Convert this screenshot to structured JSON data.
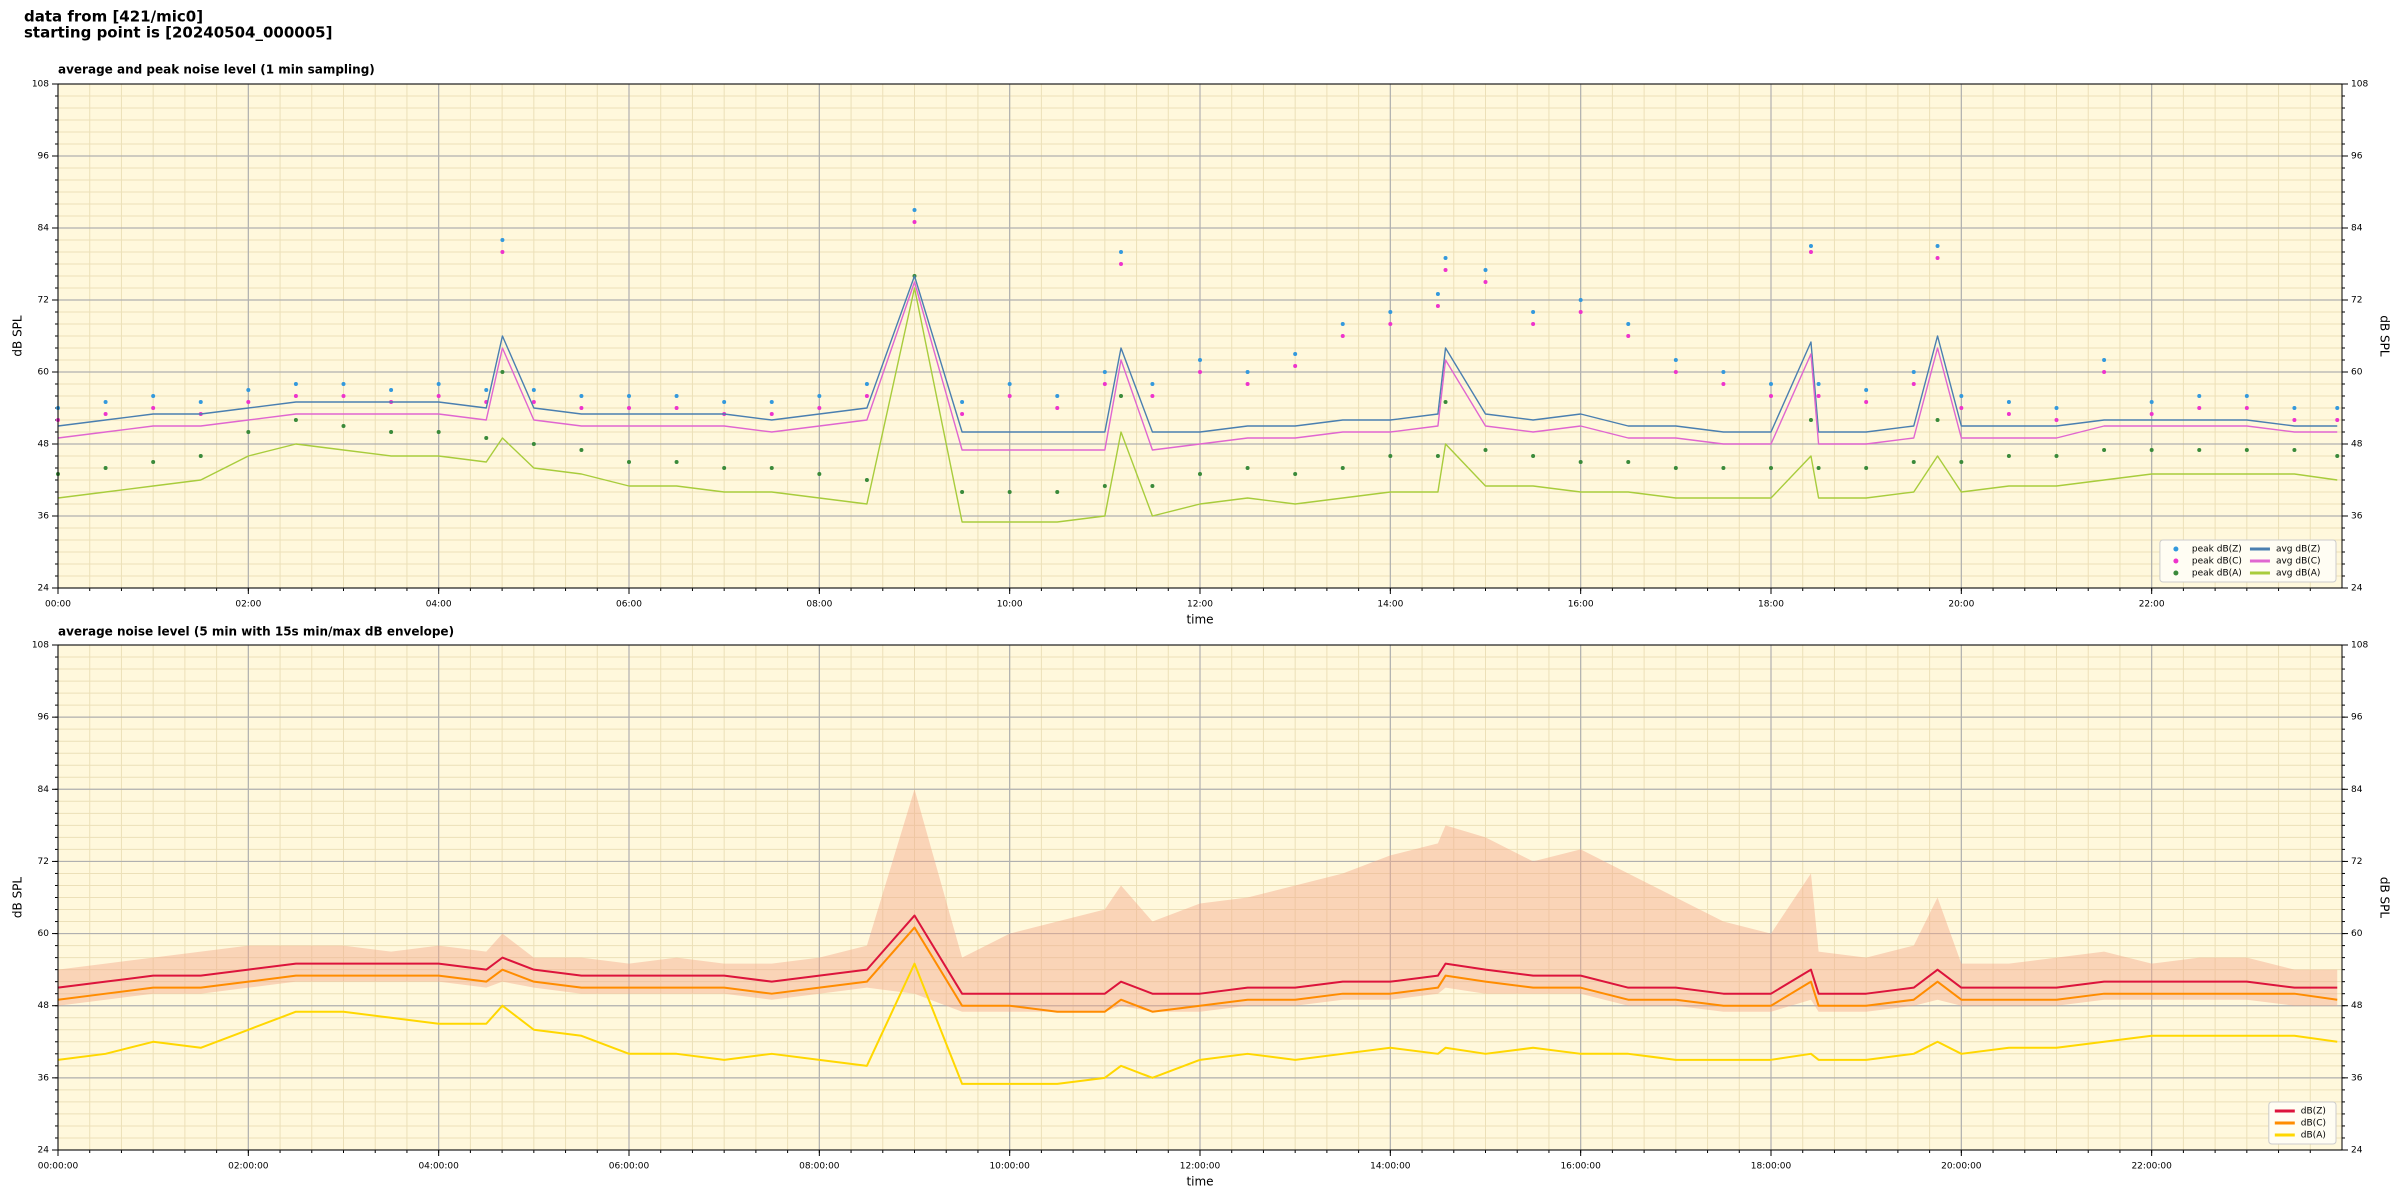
{
  "header": {
    "line1": "data from [421/mic0]",
    "line2": "starting point is [20240504_000005]"
  },
  "chart_data": [
    {
      "type": "line",
      "title": "average and peak noise level (1 min sampling)",
      "xlabel": "time",
      "ylabel": "dB SPL",
      "x": [
        0,
        0.5,
        1,
        1.5,
        2,
        2.5,
        3,
        3.5,
        4,
        4.5,
        4.67,
        5,
        5.5,
        6,
        6.5,
        7,
        7.5,
        8,
        8.5,
        9,
        9.5,
        10,
        10.5,
        11,
        11.17,
        11.5,
        12,
        12.5,
        13,
        13.5,
        14,
        14.5,
        14.58,
        15,
        15.5,
        16,
        16.5,
        17,
        17.5,
        18,
        18.42,
        18.5,
        19,
        19.5,
        19.75,
        20,
        20.5,
        21,
        21.5,
        22,
        22.5,
        23,
        23.5,
        23.95
      ],
      "xlim": [
        0,
        24
      ],
      "xticks": [
        {
          "value": 0,
          "label": "00:00"
        },
        {
          "value": 2,
          "label": "02:00"
        },
        {
          "value": 4,
          "label": "04:00"
        },
        {
          "value": 6,
          "label": "06:00"
        },
        {
          "value": 8,
          "label": "08:00"
        },
        {
          "value": 10,
          "label": "10:00"
        },
        {
          "value": 12,
          "label": "12:00"
        },
        {
          "value": 14,
          "label": "14:00"
        },
        {
          "value": 16,
          "label": "16:00"
        },
        {
          "value": 18,
          "label": "18:00"
        },
        {
          "value": 20,
          "label": "20:00"
        },
        {
          "value": 22,
          "label": "22:00"
        }
      ],
      "ylim": [
        24,
        108
      ],
      "yticks": [
        24,
        36,
        48,
        60,
        72,
        84,
        96,
        108
      ],
      "grid": true,
      "minor_divisions": 6,
      "legend": "lower right",
      "legend_columns": 2,
      "series": [
        {
          "name": "peak dB(Z)",
          "style": "marker",
          "color": "#3399dd",
          "values": [
            54,
            55,
            56,
            55,
            57,
            58,
            58,
            57,
            58,
            57,
            82,
            57,
            56,
            56,
            56,
            55,
            55,
            56,
            58,
            87,
            55,
            58,
            56,
            60,
            80,
            58,
            62,
            60,
            63,
            68,
            70,
            73,
            79,
            77,
            70,
            72,
            68,
            62,
            60,
            58,
            81,
            58,
            57,
            60,
            81,
            56,
            55,
            54,
            62,
            55,
            56,
            56,
            54,
            54
          ]
        },
        {
          "name": "peak dB(C)",
          "style": "marker",
          "color": "#ee33cc",
          "values": [
            52,
            53,
            54,
            53,
            55,
            56,
            56,
            55,
            56,
            55,
            80,
            55,
            54,
            54,
            54,
            53,
            53,
            54,
            56,
            85,
            53,
            56,
            54,
            58,
            78,
            56,
            60,
            58,
            61,
            66,
            68,
            71,
            77,
            75,
            68,
            70,
            66,
            60,
            58,
            56,
            80,
            56,
            55,
            58,
            79,
            54,
            53,
            52,
            60,
            53,
            54,
            54,
            52,
            52
          ]
        },
        {
          "name": "peak dB(A)",
          "style": "marker",
          "color": "#3a8a3a",
          "values": [
            43,
            44,
            45,
            46,
            50,
            52,
            51,
            50,
            50,
            49,
            60,
            48,
            47,
            45,
            45,
            44,
            44,
            43,
            42,
            76,
            40,
            40,
            40,
            41,
            56,
            41,
            43,
            44,
            43,
            44,
            46,
            46,
            55,
            47,
            46,
            45,
            45,
            44,
            44,
            44,
            52,
            44,
            44,
            45,
            52,
            45,
            46,
            46,
            47,
            47,
            47,
            47,
            47,
            46
          ]
        },
        {
          "name": "avg dB(Z)",
          "style": "line",
          "color": "#4a7fb0",
          "values": [
            51,
            52,
            53,
            53,
            54,
            55,
            55,
            55,
            55,
            54,
            66,
            54,
            53,
            53,
            53,
            53,
            52,
            53,
            54,
            76,
            50,
            50,
            50,
            50,
            64,
            50,
            50,
            51,
            51,
            52,
            52,
            53,
            64,
            53,
            52,
            53,
            51,
            51,
            50,
            50,
            65,
            50,
            50,
            51,
            66,
            51,
            51,
            51,
            52,
            52,
            52,
            52,
            51,
            51
          ]
        },
        {
          "name": "avg dB(C)",
          "style": "line",
          "color": "#e066d0",
          "values": [
            49,
            50,
            51,
            51,
            52,
            53,
            53,
            53,
            53,
            52,
            64,
            52,
            51,
            51,
            51,
            51,
            50,
            51,
            52,
            75,
            47,
            47,
            47,
            47,
            62,
            47,
            48,
            49,
            49,
            50,
            50,
            51,
            62,
            51,
            50,
            51,
            49,
            49,
            48,
            48,
            63,
            48,
            48,
            49,
            64,
            49,
            49,
            49,
            51,
            51,
            51,
            51,
            50,
            50
          ]
        },
        {
          "name": "avg dB(A)",
          "style": "line",
          "color": "#a8cc3c",
          "values": [
            39,
            40,
            41,
            42,
            46,
            48,
            47,
            46,
            46,
            45,
            49,
            44,
            43,
            41,
            41,
            40,
            40,
            39,
            38,
            74,
            35,
            35,
            35,
            36,
            50,
            36,
            38,
            39,
            38,
            39,
            40,
            40,
            48,
            41,
            41,
            40,
            40,
            39,
            39,
            39,
            46,
            39,
            39,
            40,
            46,
            40,
            41,
            41,
            42,
            43,
            43,
            43,
            43,
            42
          ]
        }
      ]
    },
    {
      "type": "line",
      "title": "average noise level (5 min with 15s min/max dB envelope)",
      "xlabel": "time",
      "ylabel": "dB SPL",
      "x": [
        0,
        0.5,
        1,
        1.5,
        2,
        2.5,
        3,
        3.5,
        4,
        4.5,
        4.67,
        5,
        5.5,
        6,
        6.5,
        7,
        7.5,
        8,
        8.5,
        9,
        9.5,
        10,
        10.5,
        11,
        11.17,
        11.5,
        12,
        12.5,
        13,
        13.5,
        14,
        14.5,
        14.58,
        15,
        15.5,
        16,
        16.5,
        17,
        17.5,
        18,
        18.42,
        18.5,
        19,
        19.5,
        19.75,
        20,
        20.5,
        21,
        21.5,
        22,
        22.5,
        23,
        23.5,
        23.95
      ],
      "xlim": [
        0,
        24
      ],
      "xticks": [
        {
          "value": 0,
          "label": "00:00:00"
        },
        {
          "value": 2,
          "label": "02:00:00"
        },
        {
          "value": 4,
          "label": "04:00:00"
        },
        {
          "value": 6,
          "label": "06:00:00"
        },
        {
          "value": 8,
          "label": "08:00:00"
        },
        {
          "value": 10,
          "label": "10:00:00"
        },
        {
          "value": 12,
          "label": "12:00:00"
        },
        {
          "value": 14,
          "label": "14:00:00"
        },
        {
          "value": 16,
          "label": "16:00:00"
        },
        {
          "value": 18,
          "label": "18:00:00"
        },
        {
          "value": 20,
          "label": "20:00:00"
        },
        {
          "value": 22,
          "label": "22:00:00"
        }
      ],
      "ylim": [
        24,
        108
      ],
      "yticks": [
        24,
        36,
        48,
        60,
        72,
        84,
        96,
        108
      ],
      "grid": true,
      "minor_divisions": 6,
      "legend": "lower right",
      "legend_columns": 1,
      "envelope": {
        "color": "#f5a88a",
        "high": [
          54,
          55,
          56,
          57,
          58,
          58,
          58,
          57,
          58,
          57,
          60,
          56,
          56,
          55,
          56,
          55,
          55,
          56,
          58,
          84,
          56,
          60,
          62,
          64,
          68,
          62,
          65,
          66,
          68,
          70,
          73,
          75,
          78,
          76,
          72,
          74,
          70,
          66,
          62,
          60,
          70,
          57,
          56,
          58,
          66,
          55,
          55,
          56,
          57,
          55,
          56,
          56,
          54,
          54
        ],
        "low": [
          48,
          49,
          50,
          50,
          51,
          52,
          52,
          52,
          52,
          51,
          52,
          51,
          50,
          50,
          50,
          50,
          49,
          50,
          51,
          50,
          47,
          47,
          47,
          47,
          48,
          47,
          47,
          48,
          48,
          49,
          49,
          50,
          51,
          50,
          50,
          50,
          48,
          48,
          47,
          47,
          49,
          47,
          47,
          48,
          49,
          48,
          48,
          48,
          49,
          49,
          49,
          49,
          48,
          48
        ]
      },
      "series": [
        {
          "name": "dB(Z)",
          "style": "line",
          "color": "#dc143c",
          "values": [
            51,
            52,
            53,
            53,
            54,
            55,
            55,
            55,
            55,
            54,
            56,
            54,
            53,
            53,
            53,
            53,
            52,
            53,
            54,
            63,
            50,
            50,
            50,
            50,
            52,
            50,
            50,
            51,
            51,
            52,
            52,
            53,
            55,
            54,
            53,
            53,
            51,
            51,
            50,
            50,
            54,
            50,
            50,
            51,
            54,
            51,
            51,
            51,
            52,
            52,
            52,
            52,
            51,
            51
          ]
        },
        {
          "name": "dB(C)",
          "style": "line",
          "color": "#ff8c00",
          "values": [
            49,
            50,
            51,
            51,
            52,
            53,
            53,
            53,
            53,
            52,
            54,
            52,
            51,
            51,
            51,
            51,
            50,
            51,
            52,
            61,
            48,
            48,
            47,
            47,
            49,
            47,
            48,
            49,
            49,
            50,
            50,
            51,
            53,
            52,
            51,
            51,
            49,
            49,
            48,
            48,
            52,
            48,
            48,
            49,
            52,
            49,
            49,
            49,
            50,
            50,
            50,
            50,
            50,
            49
          ]
        },
        {
          "name": "dB(A)",
          "style": "line",
          "color": "#ffd700",
          "values": [
            39,
            40,
            42,
            41,
            44,
            47,
            47,
            46,
            45,
            45,
            48,
            44,
            43,
            40,
            40,
            39,
            40,
            39,
            38,
            55,
            35,
            35,
            35,
            36,
            38,
            36,
            39,
            40,
            39,
            40,
            41,
            40,
            41,
            40,
            41,
            40,
            40,
            39,
            39,
            39,
            40,
            39,
            39,
            40,
            42,
            40,
            41,
            41,
            42,
            43,
            43,
            43,
            43,
            42
          ]
        }
      ]
    }
  ]
}
